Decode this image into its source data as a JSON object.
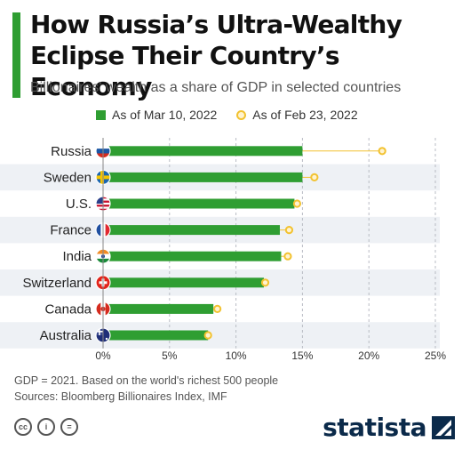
{
  "header": {
    "title": "How Russia’s Ultra-Wealthy Eclipse Their Country’s Economy",
    "subtitle": "Billionaires' wealth as a share of GDP in selected countries"
  },
  "legend": [
    {
      "label": "As of Mar 10, 2022",
      "kind": "bar",
      "color": "#2f9e32"
    },
    {
      "label": "As of Feb 23, 2022",
      "kind": "dot",
      "color": "#f2c230"
    }
  ],
  "chart_data": {
    "type": "bar",
    "orientation": "horizontal",
    "categories": [
      "Russia",
      "Sweden",
      "U.S.",
      "France",
      "India",
      "Switzerland",
      "Canada",
      "Australia"
    ],
    "series": [
      {
        "name": "As of Mar 10, 2022",
        "values": [
          15.0,
          15.0,
          14.4,
          13.3,
          13.4,
          12.1,
          8.3,
          7.9
        ],
        "color": "#2f9e32"
      },
      {
        "name": "As of Feb 23, 2022",
        "values": [
          21.0,
          15.9,
          14.6,
          14.0,
          13.9,
          12.2,
          8.6,
          7.9
        ],
        "color": "#f2c230"
      }
    ],
    "xlim": [
      0,
      25
    ],
    "xticks": [
      0,
      5,
      10,
      15,
      20,
      25
    ],
    "xtick_labels": [
      "0%",
      "5%",
      "10%",
      "15%",
      "20%",
      "25%"
    ],
    "grid": true
  },
  "flags": [
    "russia-flag-icon",
    "sweden-flag-icon",
    "us-flag-icon",
    "france-flag-icon",
    "india-flag-icon",
    "switzerland-flag-icon",
    "canada-flag-icon",
    "australia-flag-icon"
  ],
  "footer": {
    "note": "GDP = 2021. Based on the world's richest 500 people",
    "sources": "Sources: Bloomberg Billionaires Index, IMF",
    "license_icons": [
      "cc",
      "i",
      "="
    ],
    "brand": "statista"
  }
}
